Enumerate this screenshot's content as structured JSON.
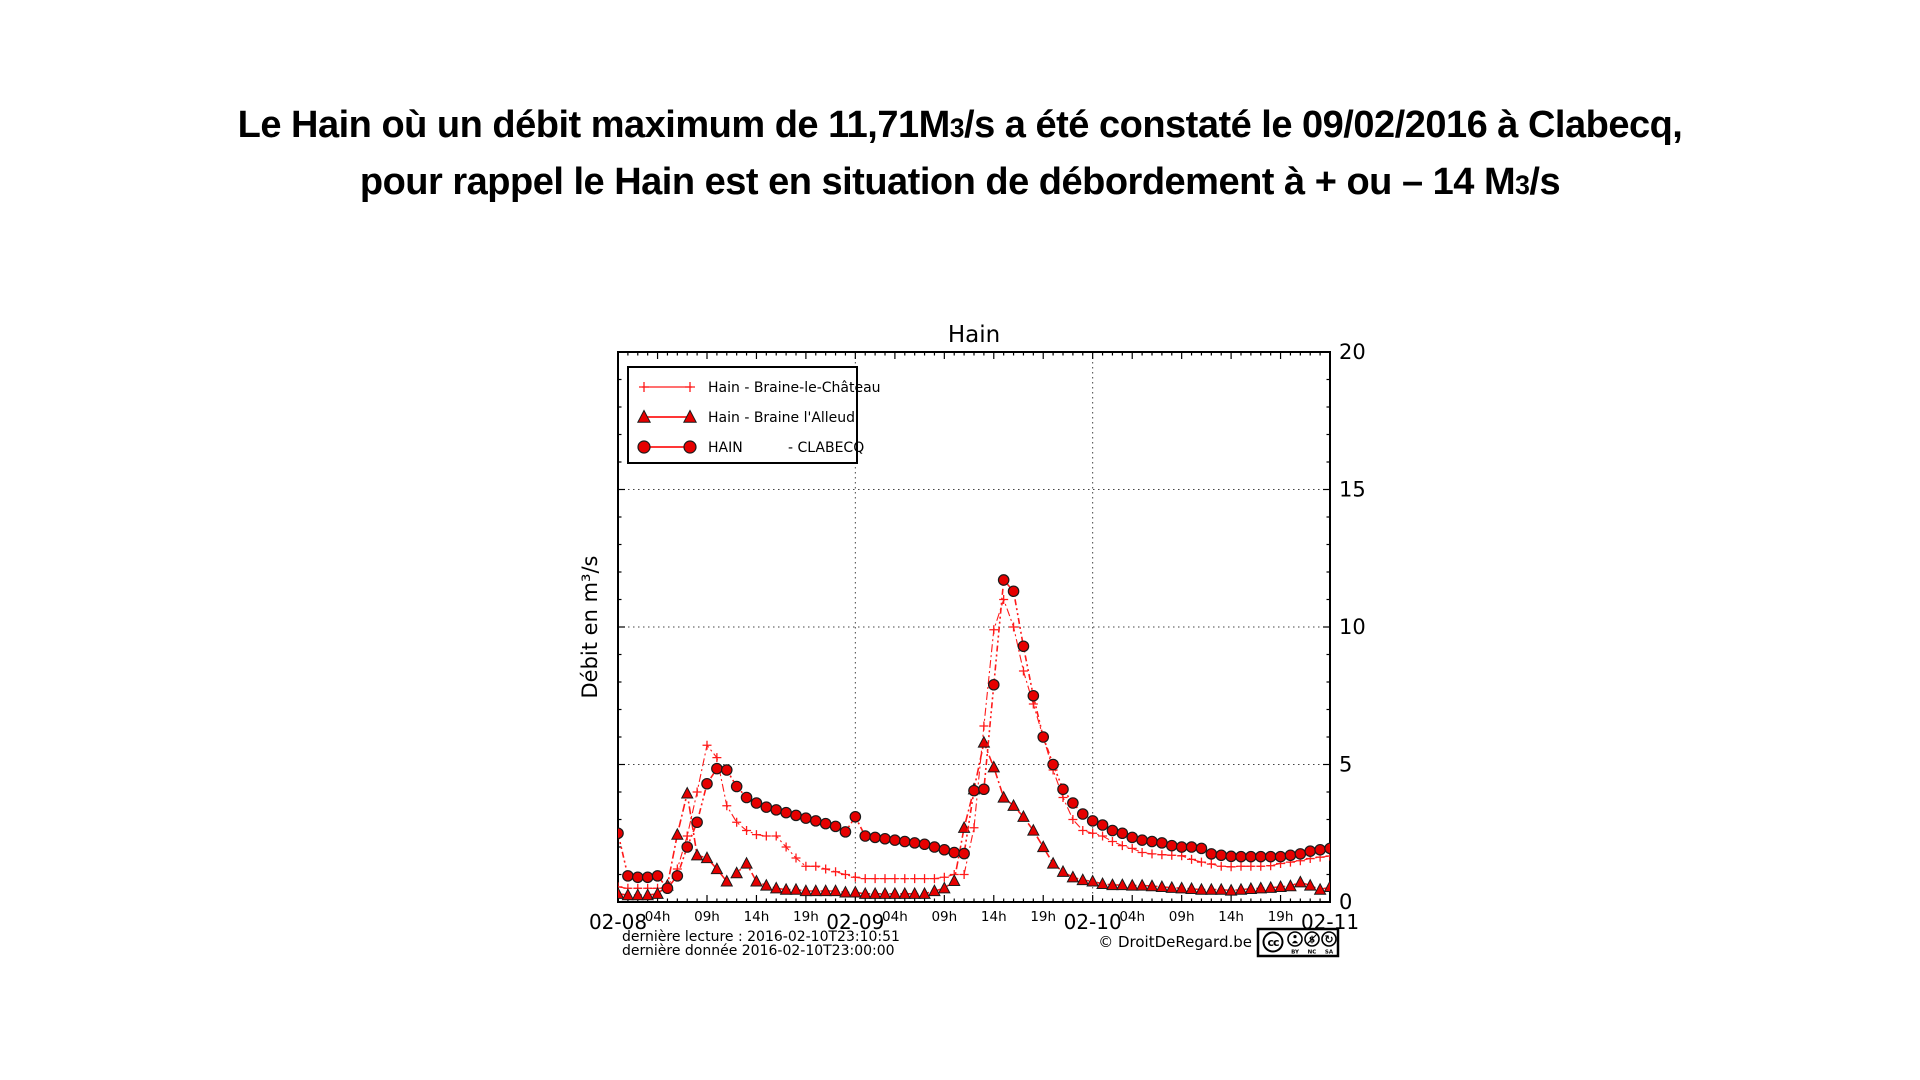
{
  "page": {
    "title_line1_before": "Le Hain où un débit maximum de 11,71M",
    "title_line1_sub": "3",
    "title_line1_after": "/s a été constaté le 09/02/2016 à Clabecq,",
    "title_line2_before": "pour rappel le Hain est en situation de débordement à + ou – 14 M",
    "title_line2_sub": "3",
    "title_line2_after": "/s"
  },
  "chart_data": {
    "type": "line",
    "title": "Hain",
    "ylabel": "Débit en m³/s",
    "ylim": [
      0,
      20
    ],
    "yticks": [
      0,
      5,
      10,
      15,
      20
    ],
    "grid": {
      "horizontal_at": [
        5,
        10,
        15
      ],
      "vertical_at_hours": [
        24,
        48
      ],
      "style": "dotted"
    },
    "x_axis": {
      "total_hours": 72,
      "day_ticks": [
        {
          "hour": 0,
          "label": "02-08"
        },
        {
          "hour": 24,
          "label": "02-09"
        },
        {
          "hour": 48,
          "label": "02-10"
        },
        {
          "hour": 72,
          "label": "02-11"
        }
      ],
      "hour_ticks": [
        {
          "hour": 4,
          "label": "04h"
        },
        {
          "hour": 9,
          "label": "09h"
        },
        {
          "hour": 14,
          "label": "14h"
        },
        {
          "hour": 19,
          "label": "19h"
        },
        {
          "hour": 28,
          "label": "04h"
        },
        {
          "hour": 33,
          "label": "09h"
        },
        {
          "hour": 38,
          "label": "14h"
        },
        {
          "hour": 43,
          "label": "19h"
        },
        {
          "hour": 52,
          "label": "04h"
        },
        {
          "hour": 57,
          "label": "09h"
        },
        {
          "hour": 62,
          "label": "14h"
        },
        {
          "hour": 67,
          "label": "19h"
        }
      ]
    },
    "legend": [
      {
        "marker": "plus",
        "text": "Hain - Braine-le-Château"
      },
      {
        "marker": "triangle",
        "text": "Hain - Braine l'Alleud"
      },
      {
        "marker": "circle",
        "text": "HAIN",
        "text2": "- CLABECQ"
      }
    ],
    "colors": {
      "line": "#ff1a1a",
      "marker_fill": "#e60000",
      "marker_edge": "#1a1a1a",
      "grid": "#444444",
      "axis": "#000000"
    },
    "series": [
      {
        "name": "Hain - Braine-le-Château",
        "marker": "plus",
        "values": [
          0.55,
          0.5,
          0.5,
          0.5,
          0.5,
          0.55,
          1.2,
          2.4,
          4.0,
          5.7,
          5.25,
          3.5,
          2.9,
          2.6,
          2.45,
          2.4,
          2.4,
          2.0,
          1.6,
          1.3,
          1.3,
          1.2,
          1.1,
          1.0,
          0.9,
          0.85,
          0.85,
          0.85,
          0.85,
          0.85,
          0.85,
          0.85,
          0.85,
          0.9,
          1.0,
          1.0,
          2.7,
          6.4,
          9.9,
          11.0,
          10.0,
          8.4,
          7.2,
          6.0,
          4.8,
          3.8,
          3.0,
          2.6,
          2.5,
          2.4,
          2.2,
          2.05,
          1.95,
          1.8,
          1.75,
          1.72,
          1.7,
          1.68,
          1.55,
          1.45,
          1.38,
          1.3,
          1.28,
          1.3,
          1.3,
          1.3,
          1.32,
          1.4,
          1.45,
          1.5,
          1.58,
          1.63,
          1.67
        ]
      },
      {
        "name": "Hain - Braine l'Alleud",
        "marker": "triangle",
        "values": [
          0.3,
          0.25,
          0.25,
          0.25,
          0.3,
          0.6,
          2.45,
          3.95,
          1.7,
          1.6,
          1.2,
          0.75,
          1.05,
          1.4,
          0.75,
          0.6,
          0.5,
          0.45,
          0.45,
          0.4,
          0.4,
          0.4,
          0.4,
          0.35,
          0.35,
          0.3,
          0.3,
          0.3,
          0.3,
          0.3,
          0.3,
          0.3,
          0.4,
          0.5,
          0.77,
          2.7,
          4.1,
          5.8,
          4.9,
          3.8,
          3.5,
          3.1,
          2.6,
          2.0,
          1.4,
          1.1,
          0.9,
          0.8,
          0.75,
          0.66,
          0.62,
          0.62,
          0.6,
          0.6,
          0.58,
          0.55,
          0.52,
          0.5,
          0.48,
          0.45,
          0.45,
          0.45,
          0.42,
          0.45,
          0.48,
          0.5,
          0.52,
          0.55,
          0.58,
          0.72,
          0.6,
          0.45,
          0.55
        ]
      },
      {
        "name": "HAIN - CLABECQ",
        "marker": "circle",
        "values": [
          2.5,
          0.95,
          0.9,
          0.9,
          0.95,
          0.5,
          0.95,
          2.0,
          2.9,
          4.3,
          4.85,
          4.8,
          4.2,
          3.8,
          3.6,
          3.45,
          3.35,
          3.25,
          3.15,
          3.05,
          2.95,
          2.85,
          2.75,
          2.55,
          3.1,
          2.4,
          2.35,
          2.3,
          2.25,
          2.2,
          2.15,
          2.1,
          2.0,
          1.9,
          1.8,
          1.76,
          4.05,
          4.1,
          7.9,
          11.71,
          11.3,
          9.3,
          7.5,
          6.0,
          5.0,
          4.1,
          3.6,
          3.2,
          2.95,
          2.8,
          2.6,
          2.5,
          2.35,
          2.25,
          2.2,
          2.15,
          2.05,
          2.0,
          2.0,
          1.95,
          1.75,
          1.7,
          1.66,
          1.65,
          1.65,
          1.65,
          1.65,
          1.65,
          1.7,
          1.75,
          1.85,
          1.9,
          1.95
        ]
      }
    ]
  },
  "footer": {
    "line1": "dernière lecture : 2016-02-10T23:10:51",
    "line2": "dernière donnée  2016-02-10T23:00:00",
    "credit": "© DroitDeRegard.be",
    "license": {
      "cc": "cc",
      "badges": [
        "BY",
        "NC",
        "SA"
      ]
    }
  }
}
